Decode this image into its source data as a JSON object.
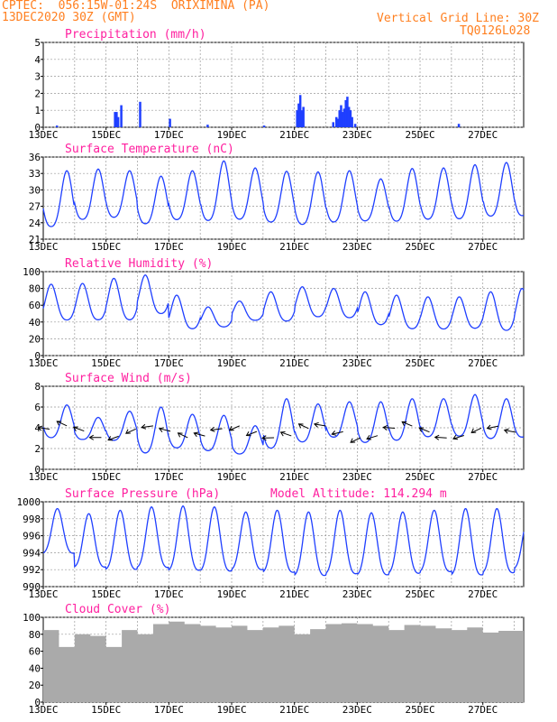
{
  "header": {
    "line1": "CPTEC:  056:15W-01:24S  ORIXIMINA (PA)",
    "line2": "13DEC2020 30Z (GMT)",
    "grid_note": "Vertical Grid Line: 30Z",
    "code": "TQ0126L028"
  },
  "x_labels": [
    "13DEC",
    "15DEC",
    "17DEC",
    "19DEC",
    "21DEC",
    "23DEC",
    "25DEC",
    "27DEC"
  ],
  "x_label_days": [
    0,
    2,
    4,
    6,
    8,
    10,
    12,
    14
  ],
  "x_range_days": [
    0,
    15.3
  ],
  "colors": {
    "line": "#1f3fff",
    "bar": "#1f3fff",
    "cloud": "#aaaaaa",
    "title": "#ff1f9f",
    "header": "#ff7f1f"
  },
  "chart_data": [
    {
      "id": "precip",
      "type": "bar",
      "title": "Precipitation (mm/h)",
      "ylim": [
        0,
        5
      ],
      "yticks": [
        0,
        1,
        2,
        3,
        4,
        5
      ],
      "bars": [
        [
          0.4,
          0.1
        ],
        [
          2.25,
          0.9
        ],
        [
          2.3,
          0.9
        ],
        [
          2.35,
          0.6
        ],
        [
          2.45,
          1.3
        ],
        [
          3.05,
          1.5
        ],
        [
          4.0,
          0.5
        ],
        [
          5.2,
          0.15
        ],
        [
          7.0,
          0.1
        ],
        [
          8.05,
          1.0
        ],
        [
          8.1,
          1.4
        ],
        [
          8.15,
          1.9
        ],
        [
          8.2,
          1.0
        ],
        [
          8.25,
          1.2
        ],
        [
          9.2,
          0.3
        ],
        [
          9.3,
          0.6
        ],
        [
          9.35,
          0.5
        ],
        [
          9.4,
          1.0
        ],
        [
          9.45,
          1.3
        ],
        [
          9.5,
          0.9
        ],
        [
          9.55,
          1.1
        ],
        [
          9.6,
          1.6
        ],
        [
          9.65,
          1.8
        ],
        [
          9.7,
          1.2
        ],
        [
          9.75,
          1.0
        ],
        [
          9.8,
          0.6
        ],
        [
          9.9,
          0.2
        ],
        [
          13.2,
          0.2
        ]
      ]
    },
    {
      "id": "temp",
      "type": "line",
      "title": "Surface Temperature (nC)",
      "ylim": [
        21,
        36
      ],
      "yticks": [
        21,
        24,
        27,
        30,
        33,
        36
      ],
      "daily_max": [
        33.5,
        33.8,
        33.5,
        32.5,
        33.5,
        35.3,
        34.0,
        33.4,
        33.3,
        33.5,
        32.0,
        33.9,
        34.0,
        34.6,
        35.0,
        35.5
      ],
      "daily_min": [
        21.5,
        23.0,
        23.5,
        22.3,
        23.0,
        22.5,
        23.0,
        22.5,
        22.0,
        22.5,
        23.0,
        22.6,
        23.0,
        23.0,
        23.5,
        23.5
      ]
    },
    {
      "id": "rh",
      "type": "line",
      "title": "Relative Humidity (%)",
      "ylim": [
        0,
        100
      ],
      "yticks": [
        0,
        20,
        40,
        60,
        80,
        100
      ],
      "daily_max": [
        85,
        86,
        92,
        96,
        72,
        58,
        65,
        76,
        82,
        80,
        76,
        72,
        70,
        70,
        76,
        80
      ],
      "daily_min": [
        35,
        35,
        34,
        42,
        25,
        30,
        38,
        35,
        40,
        39,
        30,
        25,
        25,
        26,
        22,
        22
      ]
    },
    {
      "id": "wind",
      "type": "line",
      "title": "Surface Wind (m/s)",
      "ylim": [
        0,
        8
      ],
      "yticks": [
        0,
        2,
        4,
        6,
        8
      ],
      "daily_max": [
        6.2,
        5.0,
        5.6,
        6.0,
        5.3,
        5.2,
        4.2,
        6.8,
        6.3,
        6.5,
        6.5,
        6.8,
        6.8,
        7.2,
        6.8,
        6.5
      ],
      "daily_min": [
        2.5,
        2.5,
        2.3,
        0.8,
        1.5,
        1.2,
        1.0,
        1.2,
        2.0,
        2.5,
        1.9,
        2.1,
        2.5,
        2.5,
        2.3,
        2.5
      ]
    },
    {
      "id": "pres",
      "type": "line",
      "title": "Surface Pressure (hPa)",
      "subtitle": "Model Altitude: 114.294 m",
      "ylim": [
        990,
        1000
      ],
      "yticks": [
        990,
        992,
        994,
        996,
        998,
        1000
      ],
      "daily_max": [
        999.2,
        998.6,
        999.0,
        999.4,
        999.5,
        999.4,
        998.8,
        999.0,
        998.8,
        999.0,
        998.7,
        998.8,
        999.0,
        999.2,
        999.2,
        998.5
      ],
      "daily_min": [
        993.0,
        991.2,
        990.8,
        991.0,
        990.6,
        990.5,
        990.8,
        990.4,
        990.0,
        990.2,
        990.1,
        990.3,
        990.5,
        990.0,
        990.3,
        991.0
      ]
    },
    {
      "id": "cloud",
      "type": "area",
      "title": "Cloud Cover (%)",
      "ylim": [
        0,
        100
      ],
      "yticks": [
        0,
        20,
        40,
        60,
        80,
        100
      ],
      "segments": [
        [
          0,
          0.5,
          85
        ],
        [
          0.5,
          1.0,
          65
        ],
        [
          1.0,
          1.5,
          80
        ],
        [
          1.5,
          2.0,
          78
        ],
        [
          2.0,
          2.5,
          65
        ],
        [
          2.5,
          3.0,
          85
        ],
        [
          3.0,
          3.5,
          80
        ],
        [
          3.5,
          4.0,
          92
        ],
        [
          4.0,
          4.5,
          95
        ],
        [
          4.5,
          5.0,
          92
        ],
        [
          5.0,
          5.5,
          90
        ],
        [
          5.5,
          6.0,
          88
        ],
        [
          6.0,
          6.5,
          90
        ],
        [
          6.5,
          7.0,
          85
        ],
        [
          7.0,
          7.5,
          88
        ],
        [
          7.5,
          8.0,
          90
        ],
        [
          8.0,
          8.5,
          80
        ],
        [
          8.5,
          9.0,
          86
        ],
        [
          9.0,
          9.5,
          92
        ],
        [
          9.5,
          10.0,
          93
        ],
        [
          10.0,
          10.5,
          92
        ],
        [
          10.5,
          11.0,
          90
        ],
        [
          11.0,
          11.5,
          85
        ],
        [
          11.5,
          12.0,
          91
        ],
        [
          12.0,
          12.5,
          90
        ],
        [
          12.5,
          13.0,
          87
        ],
        [
          13.0,
          13.5,
          85
        ],
        [
          13.5,
          14.0,
          88
        ],
        [
          14.0,
          14.5,
          82
        ],
        [
          14.5,
          15.3,
          84
        ]
      ]
    }
  ]
}
